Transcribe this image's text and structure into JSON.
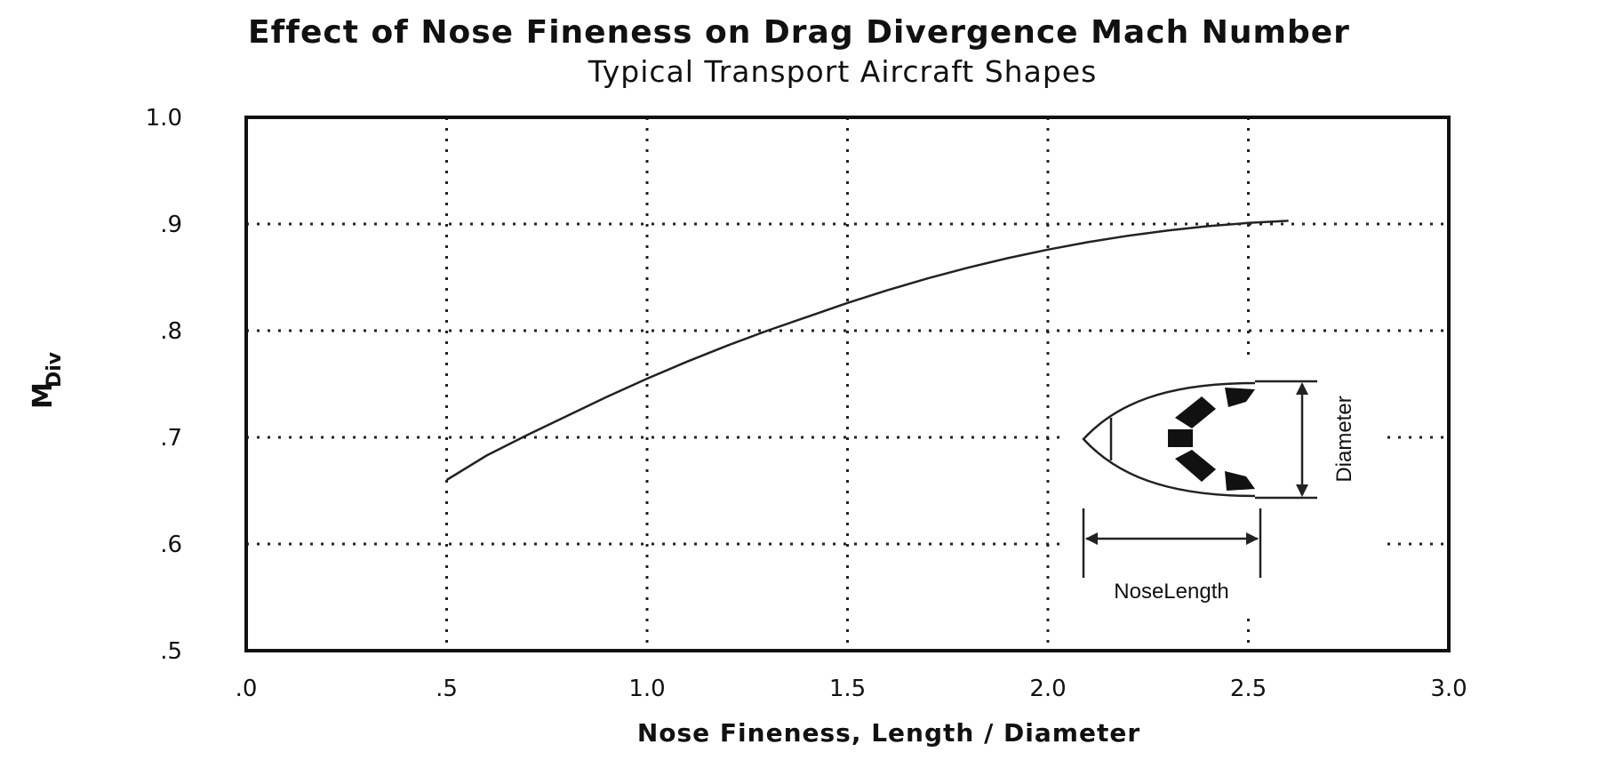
{
  "chart_data": {
    "type": "line",
    "title": "Effect of Nose Fineness on Drag Divergence Mach Number",
    "subtitle": "Typical Transport Aircraft Shapes",
    "xlabel": "Nose Fineness,  Length / Diameter",
    "ylabel_main": "M",
    "ylabel_sub": "Div",
    "xlim": [
      0.0,
      3.0
    ],
    "ylim": [
      0.5,
      1.0
    ],
    "x_ticks": [
      0.0,
      0.5,
      1.0,
      1.5,
      2.0,
      2.5,
      3.0
    ],
    "x_tick_labels": [
      ".0",
      ".5",
      "1.0",
      "1.5",
      "2.0",
      "2.5",
      "3.0"
    ],
    "y_ticks": [
      0.5,
      0.6,
      0.7,
      0.8,
      0.9,
      1.0
    ],
    "y_tick_labels": [
      ".5",
      ".6",
      ".7",
      ".8",
      ".9",
      "1.0"
    ],
    "grid": true,
    "series": [
      {
        "x": [
          0.5,
          0.6,
          0.7,
          0.8,
          0.9,
          1.0,
          1.1,
          1.2,
          1.3,
          1.4,
          1.5,
          1.6,
          1.7,
          1.8,
          1.9,
          2.0,
          2.1,
          2.2,
          2.3,
          2.4,
          2.5,
          2.6
        ],
        "y": [
          0.66,
          0.683,
          0.702,
          0.72,
          0.738,
          0.755,
          0.771,
          0.786,
          0.8,
          0.813,
          0.826,
          0.838,
          0.849,
          0.859,
          0.868,
          0.876,
          0.883,
          0.889,
          0.894,
          0.898,
          0.901,
          0.903
        ]
      }
    ],
    "inset": {
      "diameter_label": "Diameter",
      "nose_length_label": "NoseLength"
    }
  }
}
